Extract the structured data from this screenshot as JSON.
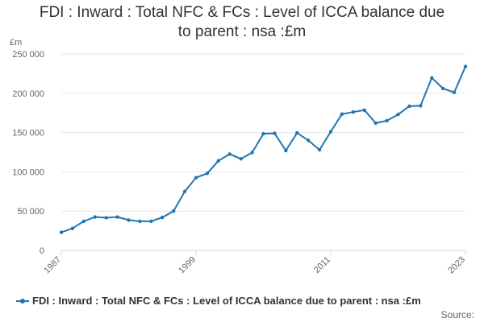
{
  "header": {
    "title_line1": "FDI : Inward : Total NFC & FCs : Level of ICCA balance due",
    "title_line2": "to parent : nsa :£m"
  },
  "footer": {
    "source_label": "Source:"
  },
  "colors": {
    "series": "#1f77b4",
    "grid": "#e6e6e6",
    "axis": "#ccd6eb"
  },
  "chart_data": {
    "type": "line",
    "title": "FDI : Inward : Total NFC & FCs : Level of ICCA balance due to parent : nsa :£m",
    "ylabel": "£m",
    "xlabel": "",
    "xlim": [
      1987,
      2023
    ],
    "ylim": [
      0,
      250000
    ],
    "x_ticks": [
      1987,
      1999,
      2011,
      2023
    ],
    "y_ticks": [
      0,
      50000,
      100000,
      150000,
      200000,
      250000
    ],
    "y_tick_labels": [
      "0",
      "50 000",
      "100 000",
      "150 000",
      "200 000",
      "250 000"
    ],
    "grid": true,
    "legend_position": "bottom-left",
    "series": [
      {
        "name": "FDI : Inward : Total NFC & FCs : Level of ICCA balance due to parent : nsa :£m",
        "x": [
          1987,
          1988,
          1989,
          1990,
          1991,
          1992,
          1993,
          1994,
          1995,
          1996,
          1997,
          1998,
          1999,
          2000,
          2001,
          2002,
          2003,
          2004,
          2005,
          2006,
          2007,
          2008,
          2009,
          2010,
          2011,
          2012,
          2013,
          2014,
          2015,
          2016,
          2017,
          2018,
          2019,
          2020,
          2021,
          2022,
          2023
        ],
        "values": [
          23000,
          28000,
          37000,
          42500,
          41500,
          42500,
          38500,
          37000,
          37000,
          42000,
          50000,
          75000,
          92500,
          98000,
          114000,
          122500,
          116500,
          124500,
          148500,
          149000,
          127000,
          149500,
          140000,
          128000,
          151000,
          173500,
          176000,
          178500,
          162000,
          165000,
          173000,
          183500,
          184000,
          219500,
          206000,
          201000,
          234000
        ]
      }
    ]
  }
}
